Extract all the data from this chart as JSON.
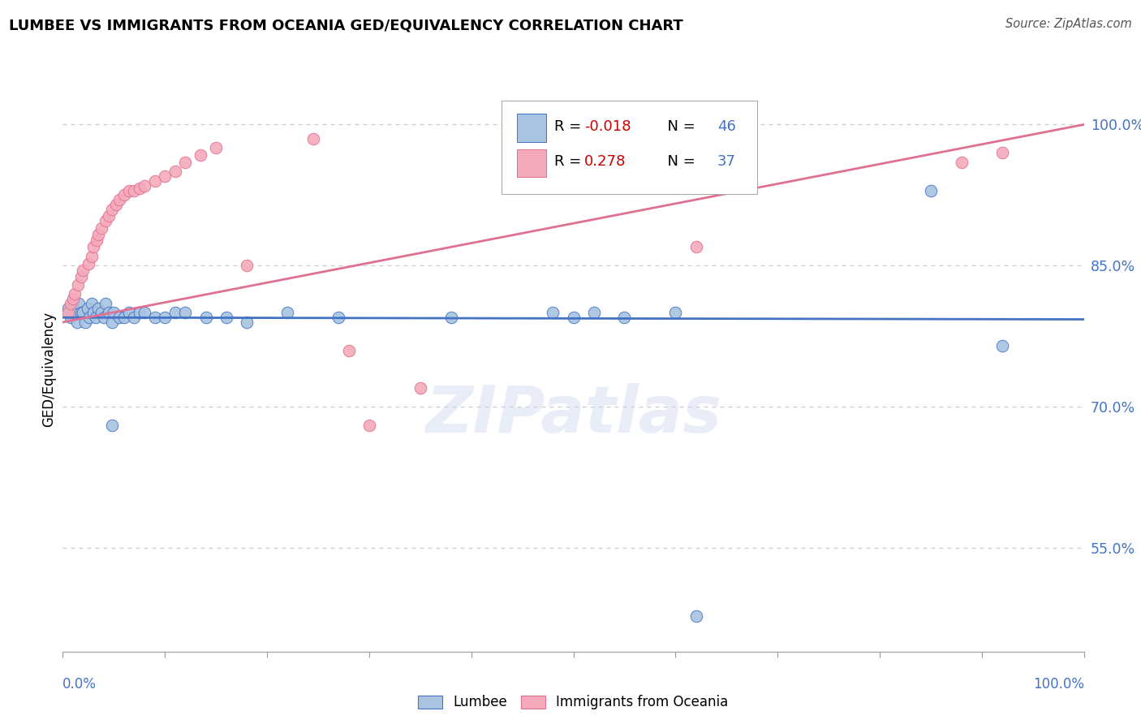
{
  "title": "LUMBEE VS IMMIGRANTS FROM OCEANIA GED/EQUIVALENCY CORRELATION CHART",
  "source": "Source: ZipAtlas.com",
  "ylabel": "GED/Equivalency",
  "watermark": "ZIPatlas",
  "blue_label": "Lumbee",
  "pink_label": "Immigrants from Oceania",
  "blue_R": "-0.018",
  "blue_N": "46",
  "pink_R": "0.278",
  "pink_N": "37",
  "blue_color": "#a8c4e0",
  "pink_color": "#f4aabb",
  "blue_line_color": "#4472c4",
  "pink_line_color": "#e07090",
  "xlim": [
    0.0,
    1.0
  ],
  "ylim": [
    0.44,
    1.04
  ],
  "yticks": [
    0.55,
    0.7,
    0.85,
    1.0
  ],
  "ytick_labels": [
    "55.0%",
    "70.0%",
    "85.0%",
    "100.0%"
  ],
  "grid_color": "#cccccc",
  "background_color": "#ffffff",
  "blue_x": [
    0.005,
    0.008,
    0.01,
    0.012,
    0.014,
    0.016,
    0.018,
    0.02,
    0.022,
    0.024,
    0.026,
    0.028,
    0.03,
    0.032,
    0.035,
    0.038,
    0.04,
    0.042,
    0.045,
    0.048,
    0.05,
    0.055,
    0.06,
    0.065,
    0.07,
    0.075,
    0.08,
    0.09,
    0.1,
    0.11,
    0.12,
    0.14,
    0.16,
    0.18,
    0.22,
    0.27,
    0.38,
    0.48,
    0.5,
    0.52,
    0.55,
    0.6,
    0.62,
    0.85,
    0.92,
    0.048
  ],
  "blue_y": [
    0.805,
    0.795,
    0.81,
    0.8,
    0.79,
    0.81,
    0.8,
    0.8,
    0.79,
    0.805,
    0.795,
    0.81,
    0.8,
    0.795,
    0.805,
    0.8,
    0.795,
    0.81,
    0.8,
    0.79,
    0.8,
    0.795,
    0.795,
    0.8,
    0.795,
    0.8,
    0.8,
    0.795,
    0.795,
    0.8,
    0.8,
    0.795,
    0.795,
    0.79,
    0.8,
    0.795,
    0.795,
    0.8,
    0.795,
    0.8,
    0.795,
    0.8,
    0.478,
    0.93,
    0.765,
    0.68
  ],
  "pink_x": [
    0.005,
    0.008,
    0.01,
    0.012,
    0.015,
    0.018,
    0.02,
    0.025,
    0.028,
    0.03,
    0.033,
    0.035,
    0.038,
    0.042,
    0.045,
    0.048,
    0.052,
    0.055,
    0.06,
    0.065,
    0.07,
    0.075,
    0.08,
    0.09,
    0.1,
    0.11,
    0.12,
    0.135,
    0.15,
    0.18,
    0.28,
    0.35,
    0.62,
    0.88,
    0.92,
    0.245,
    0.3
  ],
  "pink_y": [
    0.8,
    0.81,
    0.815,
    0.82,
    0.83,
    0.838,
    0.845,
    0.852,
    0.86,
    0.87,
    0.877,
    0.883,
    0.89,
    0.898,
    0.903,
    0.91,
    0.915,
    0.92,
    0.925,
    0.93,
    0.93,
    0.932,
    0.935,
    0.94,
    0.945,
    0.95,
    0.96,
    0.968,
    0.975,
    0.85,
    0.76,
    0.72,
    0.87,
    0.96,
    0.97,
    0.985,
    0.68
  ],
  "blue_trendline": [
    0.795,
    0.793
  ],
  "pink_trendline": [
    0.79,
    1.0
  ]
}
